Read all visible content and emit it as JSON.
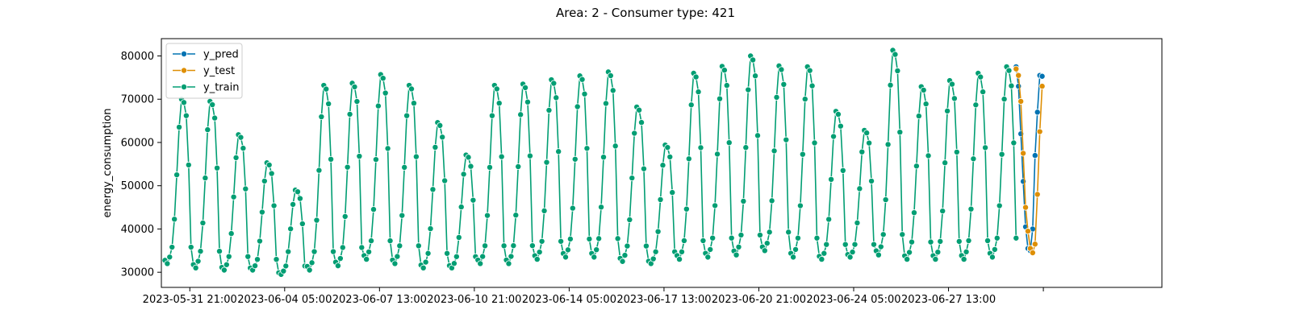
{
  "chart_data": {
    "type": "line",
    "title": "Area: 2 - Consumer type: 421",
    "xlabel": "",
    "ylabel": "energy_consumption",
    "x_start": "2023-05-31 00:00",
    "x_step_hours": 2,
    "xlim": [
      "2023-05-30 21:00",
      "2023-07-05 01:00"
    ],
    "ylim": [
      26500,
      84000
    ],
    "x_ticks": [
      "2023-05-31 21:00",
      "2023-06-04 05:00",
      "2023-06-07 13:00",
      "2023-06-10 21:00",
      "2023-06-14 05:00",
      "2023-06-17 13:00",
      "2023-06-20 21:00",
      "2023-06-24 05:00",
      "2023-06-27 13:00",
      "2023-06-30 21:00"
    ],
    "x_tick_labels": [
      "2023-05-31 21:00",
      "2023-06-04 05:00",
      "2023-06-07 13:00",
      "2023-06-10 21:00",
      "2023-06-14 05:00",
      "2023-06-17 13:00",
      "2023-06-20 21:00",
      "2023-06-24 05:00",
      "2023-06-27 13:00",
      ""
    ],
    "y_ticks": [
      30000,
      40000,
      50000,
      60000,
      70000,
      80000
    ],
    "y_tick_labels": [
      "30000",
      "40000",
      "50000",
      "60000",
      "70000",
      "80000"
    ],
    "legend_position": "top-left",
    "grid": false,
    "daily_profile": [
      0.02,
      0.0,
      0.04,
      0.1,
      0.27,
      0.54,
      0.83,
      1.0,
      0.98,
      0.9,
      0.6,
      0.1
    ],
    "series": [
      {
        "name": "y_train",
        "color": "#029e73",
        "start_index": 0,
        "daily_min": [
          32000,
          31000,
          30500,
          30500,
          29500,
          30500,
          31500,
          33000,
          32000,
          31000,
          31000,
          32000,
          32000,
          33000,
          33500,
          33500,
          32500,
          32000,
          33000,
          33500,
          34000,
          35000,
          33500,
          33000,
          33500,
          34000,
          33000,
          33000,
          33000,
          33500
        ],
        "daily_max": [
          70000,
          69500,
          61800,
          55300,
          49000,
          73200,
          73700,
          75700,
          73200,
          64600,
          57100,
          73200,
          73500,
          74500,
          75400,
          76300,
          68200,
          59400,
          76000,
          77600,
          80000,
          77700,
          77500,
          67200,
          62800,
          81300,
          72900,
          74300,
          76000,
          77500
        ]
      },
      {
        "name": "y_test",
        "color": "#de8f05",
        "start_index": 359,
        "values": [
          77000,
          75500,
          69500,
          57500,
          45000,
          39500,
          35500,
          34500,
          36500,
          48000,
          62500,
          73000
        ]
      },
      {
        "name": "y_pred",
        "color": "#0173b2",
        "start_index": 359,
        "values": [
          77500,
          73000,
          62000,
          51000,
          40500,
          35500,
          35000,
          40000,
          57000,
          67000,
          75500,
          75300
        ]
      }
    ],
    "legend_order": [
      "y_pred",
      "y_test",
      "y_train"
    ]
  }
}
